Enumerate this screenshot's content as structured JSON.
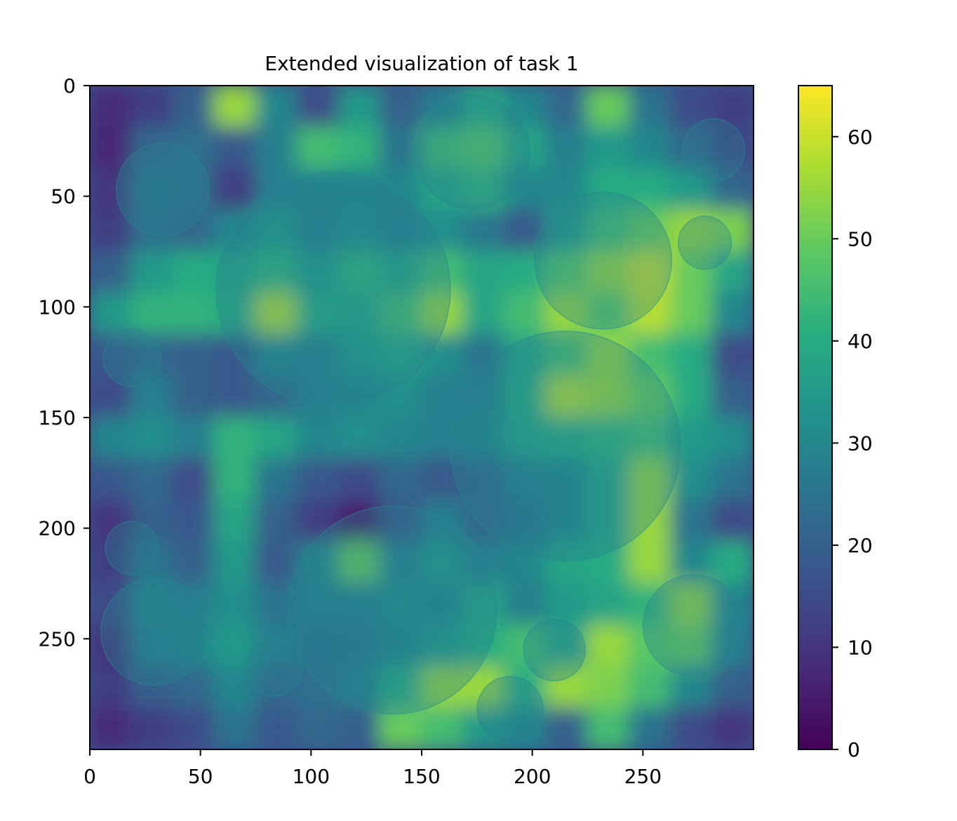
{
  "chart_data": {
    "type": "heatmap",
    "title": "Extended visualization of task 1",
    "xlabel": "",
    "ylabel": "",
    "x_ticks": [
      0,
      50,
      100,
      150,
      200,
      250
    ],
    "y_ticks": [
      0,
      50,
      100,
      150,
      200,
      250
    ],
    "xlim": [
      0,
      299
    ],
    "ylim": [
      299,
      0
    ],
    "y_axis_inverted": true,
    "grid": false,
    "colormap": "viridis",
    "colorbar": {
      "vmin": 0,
      "vmax": 65,
      "ticks": [
        0,
        10,
        20,
        30,
        40,
        50,
        60
      ]
    },
    "grid_resolution": 16,
    "approximate_values_coarse_grid": [
      [
        8,
        12,
        20,
        55,
        30,
        15,
        35,
        20,
        28,
        40,
        30,
        22,
        50,
        25,
        15,
        12
      ],
      [
        7,
        22,
        24,
        18,
        28,
        45,
        42,
        25,
        45,
        48,
        38,
        28,
        35,
        30,
        22,
        14
      ],
      [
        10,
        26,
        24,
        12,
        28,
        30,
        30,
        30,
        38,
        42,
        30,
        30,
        40,
        40,
        35,
        22
      ],
      [
        12,
        24,
        22,
        30,
        35,
        28,
        32,
        28,
        32,
        26,
        18,
        35,
        45,
        50,
        55,
        52
      ],
      [
        20,
        35,
        40,
        38,
        42,
        35,
        42,
        38,
        45,
        38,
        40,
        48,
        55,
        60,
        50,
        38
      ],
      [
        35,
        42,
        42,
        40,
        58,
        40,
        38,
        45,
        55,
        38,
        45,
        55,
        48,
        58,
        50,
        30
      ],
      [
        18,
        22,
        20,
        18,
        30,
        28,
        35,
        38,
        32,
        25,
        38,
        45,
        55,
        45,
        40,
        15
      ],
      [
        15,
        28,
        20,
        18,
        22,
        28,
        30,
        32,
        28,
        28,
        40,
        58,
        55,
        50,
        40,
        20
      ],
      [
        30,
        32,
        28,
        42,
        38,
        30,
        32,
        30,
        28,
        30,
        38,
        40,
        42,
        45,
        35,
        32
      ],
      [
        18,
        22,
        15,
        42,
        25,
        18,
        15,
        22,
        18,
        22,
        28,
        30,
        38,
        55,
        32,
        25
      ],
      [
        10,
        20,
        18,
        38,
        20,
        12,
        5,
        18,
        28,
        22,
        25,
        30,
        38,
        55,
        25,
        15
      ],
      [
        12,
        25,
        20,
        35,
        18,
        30,
        50,
        28,
        35,
        28,
        30,
        38,
        40,
        55,
        30,
        40
      ],
      [
        15,
        30,
        28,
        32,
        25,
        28,
        28,
        32,
        30,
        38,
        28,
        35,
        38,
        42,
        55,
        30
      ],
      [
        10,
        28,
        30,
        35,
        28,
        25,
        26,
        30,
        35,
        40,
        45,
        38,
        55,
        48,
        50,
        28
      ],
      [
        12,
        20,
        22,
        30,
        22,
        24,
        28,
        40,
        55,
        55,
        40,
        55,
        52,
        45,
        30,
        20
      ],
      [
        8,
        12,
        15,
        25,
        18,
        22,
        20,
        50,
        45,
        35,
        30,
        20,
        45,
        25,
        15,
        10
      ]
    ],
    "overlay_circles": [
      {
        "cx": 33,
        "cy": 47,
        "r": 21
      },
      {
        "cx": 173,
        "cy": 30,
        "r": 26
      },
      {
        "cx": 282,
        "cy": 29,
        "r": 14
      },
      {
        "cx": 110,
        "cy": 92,
        "r": 53
      },
      {
        "cx": 232,
        "cy": 79,
        "r": 31
      },
      {
        "cx": 278,
        "cy": 71,
        "r": 12
      },
      {
        "cx": 19,
        "cy": 123,
        "r": 13
      },
      {
        "cx": 215,
        "cy": 163,
        "r": 52
      },
      {
        "cx": 19,
        "cy": 209,
        "r": 12
      },
      {
        "cx": 29,
        "cy": 247,
        "r": 24
      },
      {
        "cx": 83,
        "cy": 263,
        "r": 13
      },
      {
        "cx": 137,
        "cy": 237,
        "r": 47
      },
      {
        "cx": 210,
        "cy": 255,
        "r": 14
      },
      {
        "cx": 190,
        "cy": 282,
        "r": 15
      },
      {
        "cx": 273,
        "cy": 244,
        "r": 23
      }
    ]
  }
}
